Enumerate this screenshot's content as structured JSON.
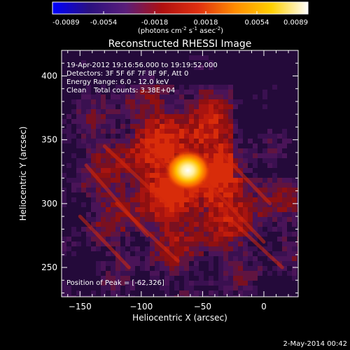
{
  "colorbar": {
    "ticks": [
      "-0.0089",
      "-0.0054",
      "-0.0018",
      "0.0018",
      "0.0054",
      "0.0089"
    ],
    "units_main": "(photons cm",
    "units_sup1": "-2",
    "units_mid": " s",
    "units_sup2": "-1",
    "units_end": " asec",
    "units_sup3": "-2",
    "units_close": ")"
  },
  "footer_date": "2-May-2014 00:42",
  "chart_data": {
    "type": "heatmap",
    "title": "Reconstructed RHESSI Image",
    "xlabel": "Heliocentric X (arcsec)",
    "ylabel": "Heliocentric Y (arcsec)",
    "xlim": [
      -165,
      28
    ],
    "ylim": [
      227,
      420
    ],
    "xticks": [
      -150,
      -100,
      -50,
      0
    ],
    "yticks": [
      250,
      300,
      350,
      400
    ],
    "xtick_labels": [
      "−150",
      "−100",
      "−50",
      "0"
    ],
    "ytick_labels": [
      "250",
      "300",
      "350",
      "400"
    ],
    "color_range": [
      -0.0089,
      0.0089
    ],
    "colormap_stops": [
      "#0000ff",
      "#2a1080",
      "#5a1e7a",
      "#b01010",
      "#e03010",
      "#ff8c00",
      "#ffd000",
      "#ffffff"
    ],
    "peak": {
      "x": -62,
      "y": 326,
      "value": 0.0089
    },
    "annotations": {
      "time_range": "19-Apr-2012 19:16:56.000 to 19:19:52.000",
      "detectors": "Detectors: 3F 5F 6F 7F 8F 9F, Att 0",
      "energy": "Energy Range: 6.0 - 12.0 keV",
      "algorithm": "Clean",
      "total_counts": "Total counts: 3.38E+04",
      "peak_position": "Position of Peak = [-62,326]"
    }
  }
}
